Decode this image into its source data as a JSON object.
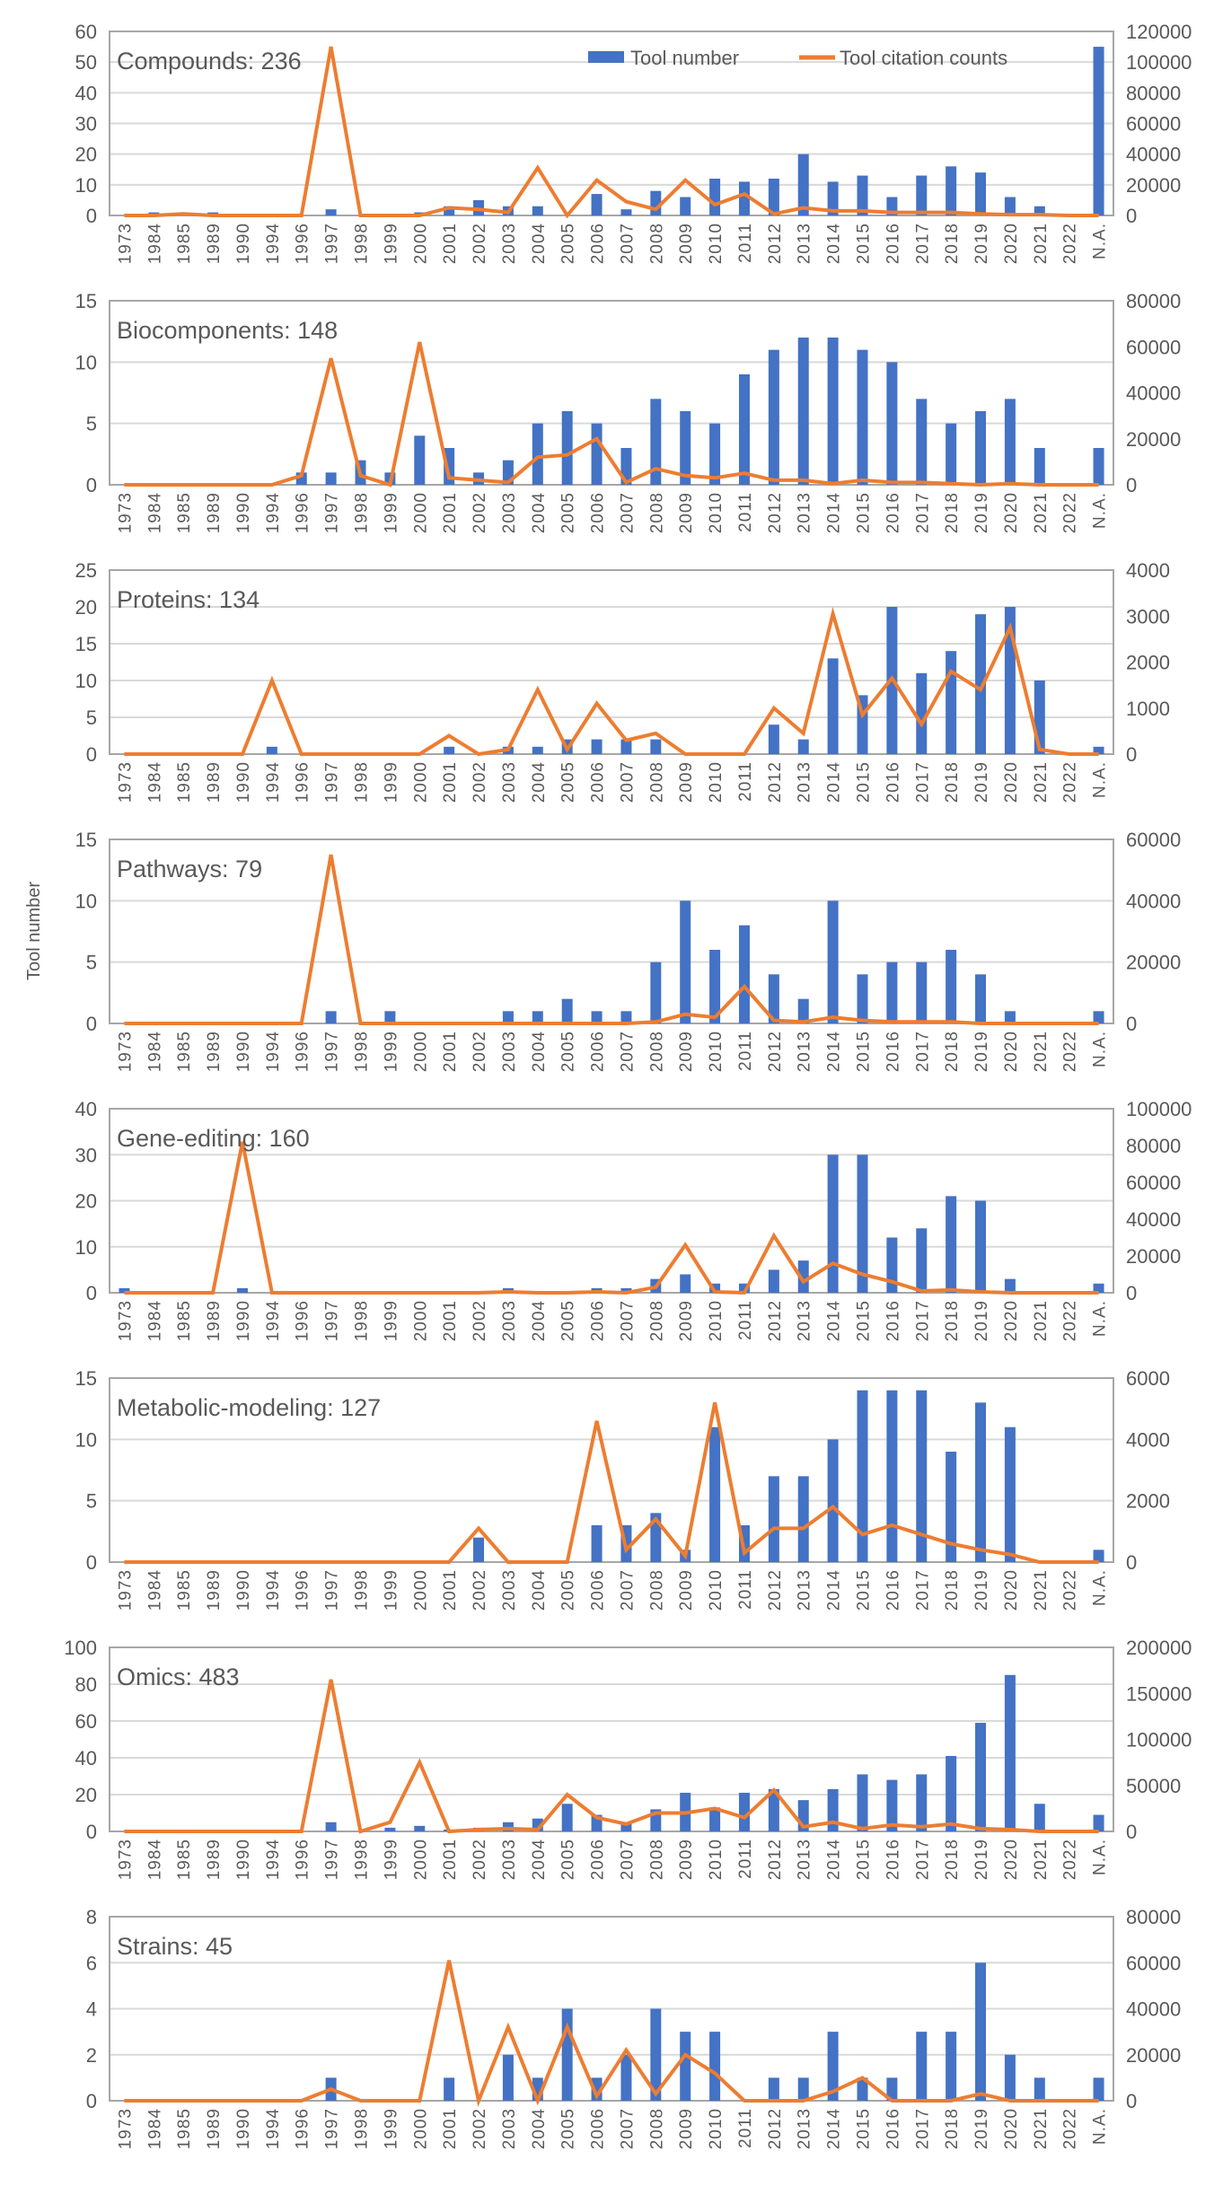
{
  "colors": {
    "bar": "#4472C4",
    "line": "#ED7D31",
    "grid": "#D9D9D9",
    "axis": "#A6A6A6",
    "text": "#595959"
  },
  "legend": {
    "bar_label": "Tool number",
    "line_label": "Tool citation counts",
    "placement": "top-right"
  },
  "y_axis_label": "Tool number",
  "chart_data": [
    {
      "type": "bar+line",
      "title": "Compounds: 236",
      "ylim": [
        0,
        60
      ],
      "yticks": [
        0,
        10,
        20,
        30,
        40,
        50,
        60
      ],
      "y2lim": [
        0,
        120000
      ],
      "y2ticks": [
        0,
        20000,
        40000,
        60000,
        80000,
        100000,
        120000
      ],
      "categories": [
        "1973",
        "1984",
        "1985",
        "1989",
        "1990",
        "1994",
        "1996",
        "1997",
        "1998",
        "1999",
        "2000",
        "2001",
        "2002",
        "2003",
        "2004",
        "2005",
        "2006",
        "2007",
        "2008",
        "2009",
        "2010",
        "2011",
        "2012",
        "2013",
        "2014",
        "2015",
        "2016",
        "2017",
        "2018",
        "2019",
        "2020",
        "2021",
        "2022",
        "N.A."
      ],
      "series": [
        {
          "name": "Tool number",
          "axis": "left",
          "values": [
            0,
            1,
            1,
            1,
            0,
            0,
            0,
            2,
            0,
            0,
            1,
            3,
            5,
            3,
            3,
            0,
            7,
            2,
            8,
            6,
            12,
            11,
            12,
            20,
            11,
            13,
            6,
            13,
            16,
            14,
            6,
            3,
            0,
            55
          ]
        },
        {
          "name": "Tool citation counts",
          "axis": "right",
          "values": [
            0,
            0,
            1000,
            0,
            0,
            0,
            0,
            110000,
            0,
            0,
            0,
            5000,
            4000,
            2000,
            31000,
            0,
            23000,
            9000,
            4000,
            23000,
            7000,
            14000,
            1000,
            5000,
            3000,
            3000,
            2000,
            2000,
            2000,
            1000,
            500,
            500,
            0,
            0
          ]
        }
      ]
    },
    {
      "type": "bar+line",
      "title": "Biocomponents: 148",
      "ylim": [
        0,
        15
      ],
      "yticks": [
        0,
        5,
        10,
        15
      ],
      "y2lim": [
        0,
        80000
      ],
      "y2ticks": [
        0,
        20000,
        40000,
        60000,
        80000
      ],
      "categories": [
        "1973",
        "1984",
        "1985",
        "1989",
        "1990",
        "1994",
        "1996",
        "1997",
        "1998",
        "1999",
        "2000",
        "2001",
        "2002",
        "2003",
        "2004",
        "2005",
        "2006",
        "2007",
        "2008",
        "2009",
        "2010",
        "2011",
        "2012",
        "2013",
        "2014",
        "2015",
        "2016",
        "2017",
        "2018",
        "2019",
        "2020",
        "2021",
        "2022",
        "N.A."
      ],
      "series": [
        {
          "name": "Tool number",
          "axis": "left",
          "values": [
            0,
            0,
            0,
            0,
            0,
            0,
            1,
            1,
            2,
            1,
            4,
            3,
            1,
            2,
            5,
            6,
            5,
            3,
            7,
            6,
            5,
            9,
            11,
            12,
            12,
            11,
            10,
            7,
            5,
            6,
            7,
            3,
            0,
            3
          ]
        },
        {
          "name": "Tool citation counts",
          "axis": "right",
          "values": [
            0,
            0,
            0,
            0,
            0,
            0,
            4000,
            55000,
            4000,
            0,
            62000,
            3000,
            2000,
            1000,
            12000,
            13000,
            20000,
            1000,
            7000,
            4000,
            3000,
            5000,
            2000,
            2000,
            500,
            2000,
            1000,
            1000,
            500,
            0,
            500,
            0,
            0,
            0
          ]
        }
      ]
    },
    {
      "type": "bar+line",
      "title": "Proteins: 134",
      "ylim": [
        0,
        25
      ],
      "yticks": [
        0,
        5,
        10,
        15,
        20,
        25
      ],
      "y2lim": [
        0,
        4000
      ],
      "y2ticks": [
        0,
        1000,
        2000,
        3000,
        4000
      ],
      "categories": [
        "1973",
        "1984",
        "1985",
        "1989",
        "1990",
        "1994",
        "1996",
        "1997",
        "1998",
        "1999",
        "2000",
        "2001",
        "2002",
        "2003",
        "2004",
        "2005",
        "2006",
        "2007",
        "2008",
        "2009",
        "2010",
        "2011",
        "2012",
        "2013",
        "2014",
        "2015",
        "2016",
        "2017",
        "2018",
        "2019",
        "2020",
        "2021",
        "2022",
        "N.A."
      ],
      "series": [
        {
          "name": "Tool number",
          "axis": "left",
          "values": [
            0,
            0,
            0,
            0,
            0,
            1,
            0,
            0,
            0,
            0,
            0,
            1,
            0,
            1,
            1,
            2,
            2,
            2,
            2,
            0,
            0,
            0,
            4,
            2,
            13,
            8,
            20,
            11,
            14,
            19,
            20,
            10,
            0,
            1
          ]
        },
        {
          "name": "Tool citation counts",
          "axis": "right",
          "values": [
            0,
            0,
            0,
            0,
            0,
            1600,
            0,
            0,
            0,
            0,
            0,
            400,
            0,
            100,
            1400,
            100,
            1100,
            300,
            450,
            0,
            0,
            0,
            1000,
            450,
            3050,
            850,
            1650,
            650,
            1800,
            1400,
            2750,
            100,
            0,
            0
          ]
        }
      ]
    },
    {
      "type": "bar+line",
      "title": "Pathways: 79",
      "ylim": [
        0,
        15
      ],
      "yticks": [
        0,
        5,
        10,
        15
      ],
      "y2lim": [
        0,
        60000
      ],
      "y2ticks": [
        0,
        20000,
        40000,
        60000
      ],
      "categories": [
        "1973",
        "1984",
        "1985",
        "1989",
        "1990",
        "1994",
        "1996",
        "1997",
        "1998",
        "1999",
        "2000",
        "2001",
        "2002",
        "2003",
        "2004",
        "2005",
        "2006",
        "2007",
        "2008",
        "2009",
        "2010",
        "2011",
        "2012",
        "2013",
        "2014",
        "2015",
        "2016",
        "2017",
        "2018",
        "2019",
        "2020",
        "2021",
        "2022",
        "N.A."
      ],
      "series": [
        {
          "name": "Tool number",
          "axis": "left",
          "values": [
            0,
            0,
            0,
            0,
            0,
            0,
            0,
            1,
            0,
            1,
            0,
            0,
            0,
            1,
            1,
            2,
            1,
            1,
            5,
            10,
            6,
            8,
            4,
            2,
            10,
            4,
            5,
            5,
            6,
            4,
            1,
            0,
            0,
            1
          ]
        },
        {
          "name": "Tool citation counts",
          "axis": "right",
          "values": [
            0,
            0,
            0,
            0,
            0,
            0,
            0,
            55000,
            0,
            0,
            0,
            0,
            0,
            0,
            0,
            0,
            0,
            0,
            500,
            3000,
            2000,
            12000,
            1000,
            500,
            2000,
            1000,
            500,
            500,
            500,
            0,
            0,
            0,
            0,
            0
          ]
        }
      ]
    },
    {
      "type": "bar+line",
      "title": "Gene-editing: 160",
      "ylim": [
        0,
        40
      ],
      "yticks": [
        0,
        10,
        20,
        30,
        40
      ],
      "y2lim": [
        0,
        100000
      ],
      "y2ticks": [
        0,
        20000,
        40000,
        60000,
        80000,
        100000
      ],
      "categories": [
        "1973",
        "1984",
        "1985",
        "1989",
        "1990",
        "1994",
        "1996",
        "1997",
        "1998",
        "1999",
        "2000",
        "2001",
        "2002",
        "2003",
        "2004",
        "2005",
        "2006",
        "2007",
        "2008",
        "2009",
        "2010",
        "2011",
        "2012",
        "2013",
        "2014",
        "2015",
        "2016",
        "2017",
        "2018",
        "2019",
        "2020",
        "2021",
        "2022",
        "N.A."
      ],
      "series": [
        {
          "name": "Tool number",
          "axis": "left",
          "values": [
            1,
            0,
            0,
            0,
            1,
            0,
            0,
            0,
            0,
            0,
            0,
            0,
            0,
            1,
            0,
            0,
            1,
            1,
            3,
            4,
            2,
            2,
            5,
            7,
            30,
            30,
            12,
            14,
            21,
            20,
            3,
            0,
            0,
            2
          ]
        },
        {
          "name": "Tool citation counts",
          "axis": "right",
          "values": [
            0,
            0,
            0,
            0,
            82000,
            0,
            0,
            0,
            0,
            0,
            0,
            0,
            0,
            500,
            0,
            0,
            500,
            0,
            3000,
            26000,
            500,
            0,
            31000,
            6000,
            16000,
            10000,
            6000,
            1000,
            1500,
            500,
            0,
            0,
            0,
            0
          ]
        }
      ]
    },
    {
      "type": "bar+line",
      "title": "Metabolic-modeling: 127",
      "ylim": [
        0,
        15
      ],
      "yticks": [
        0,
        5,
        10,
        15
      ],
      "y2lim": [
        0,
        6000
      ],
      "y2ticks": [
        0,
        2000,
        4000,
        6000
      ],
      "categories": [
        "1973",
        "1984",
        "1985",
        "1989",
        "1990",
        "1994",
        "1996",
        "1997",
        "1998",
        "1999",
        "2000",
        "2001",
        "2002",
        "2003",
        "2004",
        "2005",
        "2006",
        "2007",
        "2008",
        "2009",
        "2010",
        "2011",
        "2012",
        "2013",
        "2014",
        "2015",
        "2016",
        "2017",
        "2018",
        "2019",
        "2020",
        "2021",
        "2022",
        "N.A."
      ],
      "series": [
        {
          "name": "Tool number",
          "axis": "left",
          "values": [
            0,
            0,
            0,
            0,
            0,
            0,
            0,
            0,
            0,
            0,
            0,
            0,
            2,
            0,
            0,
            0,
            3,
            3,
            4,
            1,
            11,
            3,
            7,
            7,
            10,
            14,
            14,
            14,
            9,
            13,
            11,
            0,
            0,
            1
          ]
        },
        {
          "name": "Tool citation counts",
          "axis": "right",
          "values": [
            0,
            0,
            0,
            0,
            0,
            0,
            0,
            0,
            0,
            0,
            0,
            0,
            1100,
            0,
            0,
            0,
            4600,
            400,
            1400,
            200,
            5200,
            300,
            1100,
            1100,
            1800,
            900,
            1200,
            900,
            600,
            400,
            250,
            0,
            0,
            0
          ]
        }
      ]
    },
    {
      "type": "bar+line",
      "title": "Omics: 483",
      "ylim": [
        0,
        100
      ],
      "yticks": [
        0,
        20,
        40,
        60,
        80,
        100
      ],
      "y2lim": [
        0,
        200000
      ],
      "y2ticks": [
        0,
        50000,
        100000,
        150000,
        200000
      ],
      "categories": [
        "1973",
        "1984",
        "1985",
        "1989",
        "1990",
        "1994",
        "1996",
        "1997",
        "1998",
        "1999",
        "2000",
        "2001",
        "2002",
        "2003",
        "2004",
        "2005",
        "2006",
        "2007",
        "2008",
        "2009",
        "2010",
        "2011",
        "2012",
        "2013",
        "2014",
        "2015",
        "2016",
        "2017",
        "2018",
        "2019",
        "2020",
        "2021",
        "2022",
        "N.A."
      ],
      "series": [
        {
          "name": "Tool number",
          "axis": "left",
          "values": [
            0,
            0,
            0,
            0,
            0,
            0,
            0,
            5,
            0,
            2,
            3,
            1,
            2,
            5,
            7,
            15,
            9,
            5,
            12,
            21,
            13,
            21,
            23,
            17,
            23,
            31,
            28,
            31,
            41,
            59,
            85,
            15,
            0,
            9
          ]
        },
        {
          "name": "Tool citation counts",
          "axis": "right",
          "values": [
            0,
            0,
            0,
            0,
            0,
            0,
            0,
            165000,
            0,
            10000,
            75000,
            0,
            2000,
            3000,
            2000,
            40000,
            15000,
            8000,
            20000,
            20000,
            25000,
            15000,
            45000,
            5000,
            10000,
            3000,
            7000,
            5000,
            8000,
            3000,
            2000,
            0,
            0,
            0
          ]
        }
      ]
    },
    {
      "type": "bar+line",
      "title": "Strains: 45",
      "ylim": [
        0,
        8
      ],
      "yticks": [
        0,
        2,
        4,
        6,
        8
      ],
      "y2lim": [
        0,
        80000
      ],
      "y2ticks": [
        0,
        20000,
        40000,
        60000,
        80000
      ],
      "categories": [
        "1973",
        "1984",
        "1985",
        "1989",
        "1990",
        "1994",
        "1996",
        "1997",
        "1998",
        "1999",
        "2000",
        "2001",
        "2002",
        "2003",
        "2004",
        "2005",
        "2006",
        "2007",
        "2008",
        "2009",
        "2010",
        "2011",
        "2012",
        "2013",
        "2014",
        "2015",
        "2016",
        "2017",
        "2018",
        "2019",
        "2020",
        "2021",
        "2022",
        "N.A."
      ],
      "series": [
        {
          "name": "Tool number",
          "axis": "left",
          "values": [
            0,
            0,
            0,
            0,
            0,
            0,
            0,
            1,
            0,
            0,
            0,
            1,
            0,
            2,
            1,
            4,
            1,
            2,
            4,
            3,
            3,
            0,
            1,
            1,
            3,
            1,
            1,
            3,
            3,
            6,
            2,
            1,
            0,
            1
          ]
        },
        {
          "name": "Tool citation counts",
          "axis": "right",
          "values": [
            0,
            0,
            0,
            0,
            0,
            0,
            0,
            5000,
            0,
            0,
            0,
            61000,
            0,
            32000,
            0,
            32000,
            2000,
            22000,
            3000,
            20000,
            12000,
            0,
            0,
            0,
            4000,
            10000,
            0,
            0,
            0,
            3000,
            0,
            0,
            0,
            0
          ]
        }
      ]
    }
  ]
}
